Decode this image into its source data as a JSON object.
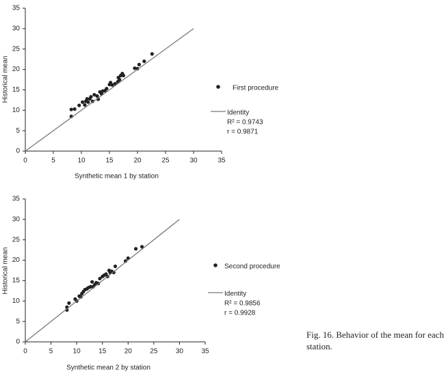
{
  "chart_data": [
    {
      "type": "scatter",
      "x_label": "Synthetic mean 1 by station",
      "y_label": "Historical mean",
      "xlim": [
        0,
        35
      ],
      "ylim": [
        0,
        35
      ],
      "xticks": [
        0,
        5,
        10,
        15,
        20,
        25,
        30,
        35
      ],
      "yticks": [
        0,
        5,
        10,
        15,
        20,
        25,
        30,
        35
      ],
      "legend": "right",
      "series": [
        {
          "name": "First procedure",
          "type": "scatter",
          "color": "#222222",
          "x": [
            8.2,
            8.2,
            8.8,
            9.6,
            10.2,
            10.6,
            10.8,
            11,
            11.2,
            11.5,
            11.7,
            12,
            12.3,
            12.8,
            13,
            13.3,
            13.6,
            13.8,
            14.2,
            14.5,
            15,
            15.2,
            15.5,
            16,
            16.5,
            16.6,
            16.8,
            17,
            17.3,
            17.5,
            19.5,
            20,
            20.3,
            21.2,
            22.6
          ],
          "values": [
            8.5,
            10.2,
            10.3,
            11.2,
            12,
            11.3,
            12.2,
            12.8,
            12,
            12.8,
            13.3,
            12.2,
            13.8,
            13.5,
            12.7,
            14.5,
            14,
            14.7,
            14.8,
            15.3,
            16.3,
            16.8,
            16.2,
            16.5,
            17,
            18,
            17.5,
            18.5,
            19,
            18.5,
            20.3,
            20.2,
            21.2,
            22,
            23.8
          ]
        },
        {
          "name": "Identity",
          "type": "line",
          "color": "#777777",
          "x": [
            0,
            30
          ],
          "values": [
            0,
            30
          ]
        }
      ],
      "annotations": [
        "R² = 0.9743",
        "r = 0.9871"
      ]
    },
    {
      "type": "scatter",
      "x_label": "Synthetic mean 2 by station",
      "y_label": "Historical mean",
      "xlim": [
        0,
        35
      ],
      "ylim": [
        0,
        35
      ],
      "xticks": [
        0,
        5,
        10,
        15,
        20,
        25,
        30,
        35
      ],
      "yticks": [
        0,
        5,
        10,
        15,
        20,
        25,
        30,
        35
      ],
      "legend": "right",
      "series": [
        {
          "name": "Second procedure",
          "type": "scatter",
          "color": "#222222",
          "x": [
            8.1,
            8.1,
            8.5,
            9.7,
            10,
            10.5,
            10.8,
            11,
            11.3,
            11.6,
            12,
            12.3,
            12.7,
            13,
            13.2,
            13.5,
            13.8,
            14.2,
            14.5,
            15,
            15.3,
            15.7,
            16,
            16.3,
            16.5,
            16.8,
            17.2,
            17.5,
            19.5,
            20,
            21.5,
            22.7
          ],
          "values": [
            7.8,
            8.5,
            9.5,
            10.5,
            10,
            11.2,
            11,
            11.8,
            12.3,
            12.8,
            13,
            13.3,
            13.5,
            14.7,
            13.5,
            14,
            14.5,
            14.3,
            15.5,
            16,
            16.3,
            16.6,
            16,
            17.5,
            17,
            17.3,
            17,
            18.5,
            19.8,
            20.5,
            22.8,
            23.3
          ]
        },
        {
          "name": "Identity",
          "type": "line",
          "color": "#777777",
          "x": [
            0,
            30
          ],
          "values": [
            0,
            30
          ]
        }
      ],
      "annotations": [
        "R² = 0.9856",
        "r = 0.9928"
      ]
    }
  ],
  "caption": "Fig. 16. Behavior of the mean for each station."
}
